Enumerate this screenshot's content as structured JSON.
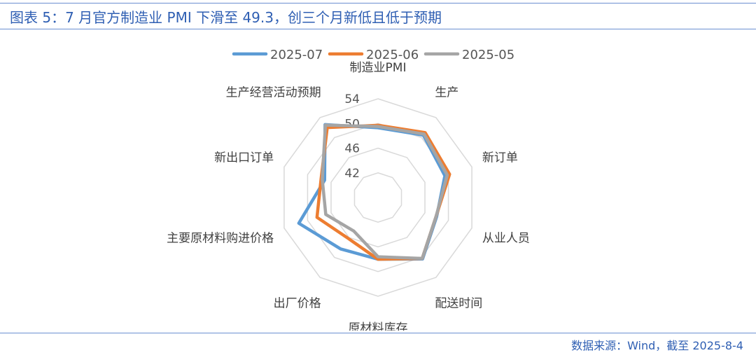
{
  "header": {
    "title": "图表 5：7 月官方制造业 PMI 下滑至 49.3，创三个月新低且低于预期"
  },
  "footer": {
    "source": "数据来源：Wind，截至 2025-8-4"
  },
  "chart_data": {
    "type": "radar",
    "categories": [
      "制造业PMI",
      "生产",
      "新订单",
      "从业人员",
      "配送时间",
      "原材料库存",
      "出厂价格",
      "主要原材料购进价格",
      "新出口订单",
      "生产经营活动预期"
    ],
    "ticks": [
      42,
      46,
      50,
      54
    ],
    "range": [
      38,
      54
    ],
    "series": [
      {
        "name": "2025-07",
        "color": "#5b9bd5",
        "values": [
          49.3,
          50.5,
          49.4,
          48.0,
          50.3,
          48.0,
          48.3,
          51.5,
          47.1,
          52.6
        ]
      },
      {
        "name": "2025-06",
        "color": "#ed7d31",
        "values": [
          49.7,
          51.0,
          50.2,
          47.9,
          50.2,
          48.0,
          46.2,
          48.4,
          47.7,
          52.0
        ]
      },
      {
        "name": "2025-05",
        "color": "#a5a5a5",
        "values": [
          49.5,
          50.7,
          49.8,
          47.9,
          50.2,
          47.6,
          44.7,
          46.9,
          47.5,
          52.5
        ]
      }
    ],
    "legend_position": "top",
    "grid": true
  }
}
